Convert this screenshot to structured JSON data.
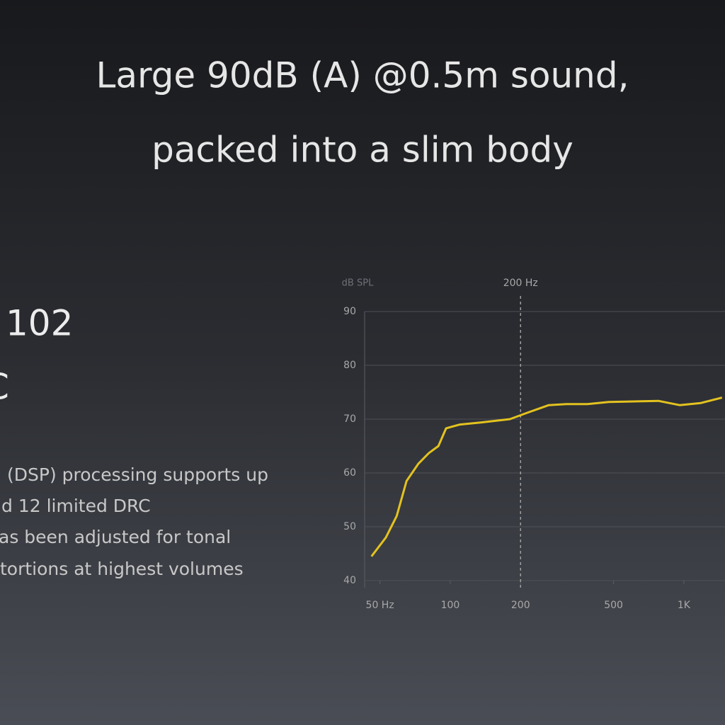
{
  "header": {
    "title_lines": [
      "Large 90dB (A) @0.5m sound,",
      "packed into a slim body"
    ]
  },
  "left_panel": {
    "headline": "102",
    "subline": "C",
    "lines": [
      "(DSP) processing supports up",
      "d 12 limited DRC",
      "as been adjusted for tonal",
      "tortions at highest volumes"
    ]
  },
  "chart_data": {
    "type": "line",
    "x_scale": "log",
    "y_label": "dB SPL",
    "annotation": {
      "text": "200 Hz",
      "x": 200
    },
    "x": [
      46,
      53,
      59,
      65,
      73,
      81,
      89,
      96,
      110,
      136,
      180,
      214,
      264,
      314,
      387,
      477,
      631,
      778,
      959,
      1183,
      1457
    ],
    "series": [
      {
        "color": "#e3c21f",
        "values": [
          44.5,
          48,
          52,
          58.5,
          61.7,
          63.7,
          65,
          68.3,
          69,
          69.4,
          70,
          71.2,
          72.6,
          72.8,
          72.8,
          73.2,
          73.3,
          73.4,
          72.6,
          73,
          74
        ]
      }
    ],
    "xlim": [
      43,
      1500
    ],
    "ylim": [
      40,
      90
    ],
    "xticks": [
      {
        "value": 50,
        "label": "50 Hz"
      },
      100,
      200,
      500,
      {
        "value": 1000,
        "label": "1K"
      }
    ],
    "yticks": [
      40,
      50,
      60,
      70,
      80,
      90
    ],
    "grid": true
  }
}
